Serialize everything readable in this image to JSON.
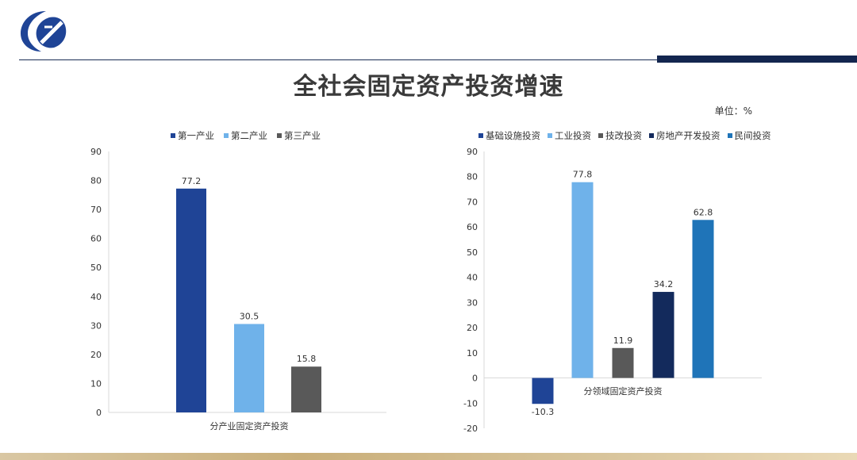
{
  "page": {
    "title": "全社会固定资产投资增速",
    "unit_note": "单位：%"
  },
  "colors": {
    "dark_blue": "#1f4496",
    "light_blue": "#6fb2ea",
    "gray": "#595959",
    "navy": "#132a5c",
    "mid_blue": "#1f74b8",
    "header_navy": "#13264f"
  },
  "chart_data": [
    {
      "type": "bar",
      "xlabel": "分产业固定资产投资",
      "ylim": [
        0,
        90
      ],
      "yticks": [
        0,
        10,
        20,
        30,
        40,
        50,
        60,
        70,
        80,
        90
      ],
      "grid": false,
      "legend_position": "top",
      "series": [
        {
          "name": "第一产业",
          "values": [
            77.2
          ],
          "color": "#1f4496"
        },
        {
          "name": "第二产业",
          "values": [
            30.5
          ],
          "color": "#6fb2ea"
        },
        {
          "name": "第三产业",
          "values": [
            15.8
          ],
          "color": "#595959"
        }
      ]
    },
    {
      "type": "bar",
      "xlabel": "分领域固定资产投资",
      "ylim": [
        -20,
        90
      ],
      "yticks": [
        -20,
        -10,
        0,
        10,
        20,
        30,
        40,
        50,
        60,
        70,
        80,
        90
      ],
      "grid": false,
      "legend_position": "top",
      "series": [
        {
          "name": "基础设施投资",
          "values": [
            -10.3
          ],
          "color": "#1f4496"
        },
        {
          "name": "工业投资",
          "values": [
            77.8
          ],
          "color": "#6fb2ea"
        },
        {
          "name": "技改投资",
          "values": [
            11.9
          ],
          "color": "#595959"
        },
        {
          "name": "房地产开发投资",
          "values": [
            34.2
          ],
          "color": "#132a5c"
        },
        {
          "name": "民间投资",
          "values": [
            62.8
          ],
          "color": "#1f74b8"
        }
      ]
    }
  ]
}
